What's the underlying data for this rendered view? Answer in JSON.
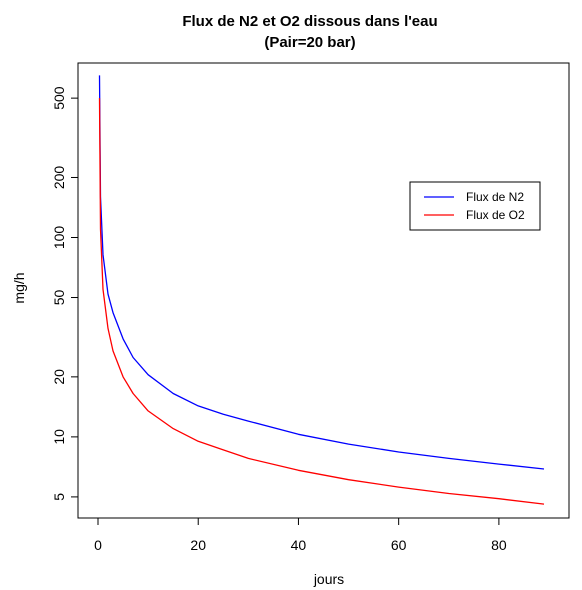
{
  "chart_data": {
    "type": "line",
    "title": "Flux de N2 et O2 dissous dans l'eau",
    "subtitle": "(Pair=20 bar)",
    "xlabel": "jours",
    "ylabel": "mg/h",
    "xlim": [
      0,
      90
    ],
    "ylim": [
      4.2,
      700
    ],
    "y_scale": "log",
    "x_ticks": [
      "0",
      "20",
      "40",
      "60",
      "80"
    ],
    "y_ticks": [
      "5",
      "10",
      "20",
      "50",
      "100",
      "200",
      "500"
    ],
    "grid": false,
    "legend_position": "right",
    "series": [
      {
        "name": "Flux de N2",
        "color": "#0000ff",
        "x": [
          0.3,
          0.5,
          1,
          2,
          3,
          5,
          7,
          10,
          15,
          20,
          25,
          30,
          40,
          50,
          60,
          70,
          80,
          89
        ],
        "y": [
          650,
          160,
          82,
          52,
          42,
          31,
          25,
          20.5,
          16.5,
          14.3,
          13,
          12,
          10.3,
          9.2,
          8.4,
          7.8,
          7.3,
          6.9
        ]
      },
      {
        "name": "Flux de O2",
        "color": "#ff0000",
        "x": [
          0.3,
          0.5,
          1,
          2,
          3,
          5,
          7,
          10,
          15,
          20,
          25,
          30,
          40,
          50,
          60,
          70,
          80,
          89
        ],
        "y": [
          500,
          110,
          55,
          35,
          27,
          20,
          16.5,
          13.5,
          11,
          9.5,
          8.6,
          7.8,
          6.8,
          6.1,
          5.6,
          5.2,
          4.9,
          4.6
        ]
      }
    ]
  }
}
